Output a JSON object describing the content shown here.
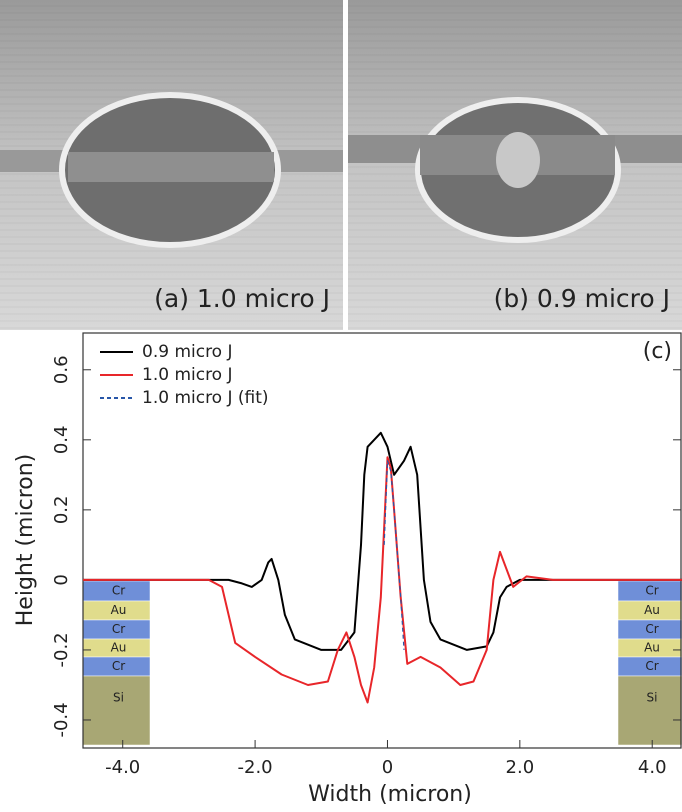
{
  "chart_data": {
    "type": "line",
    "panel_labels": [
      "(a) 1.0 micro J",
      "(b) 0.9 micro J",
      "(c)"
    ],
    "x_label": "Width (micron)",
    "y_label": "Height (micron)",
    "xlim": [
      -4.6,
      4.45
    ],
    "ylim": [
      -0.48,
      0.705
    ],
    "xticks": [
      {
        "value": -4,
        "label": "-4.0"
      },
      {
        "value": -2,
        "label": "-2.0"
      },
      0,
      {
        "value": 2,
        "label": "2.0"
      },
      {
        "value": 4,
        "label": "4.0"
      }
    ],
    "yticks": [
      -0.4,
      -0.2,
      0,
      0.2,
      0.4,
      0.6
    ],
    "legend": "upper left",
    "layer_labels": [
      "Cr",
      "Au",
      "Cr",
      "Au",
      "Cr",
      "Si"
    ],
    "series": [
      {
        "name": "0.9 micro J",
        "color": "#000000",
        "dash": false,
        "x": [
          -4.6,
          -2.4,
          -2.2,
          -2.05,
          -1.9,
          -1.8,
          -1.75,
          -1.65,
          -1.55,
          -1.4,
          -1.0,
          -0.7,
          -0.5,
          -0.4,
          -0.35,
          -0.3,
          -0.1,
          0.0,
          0.1,
          0.25,
          0.35,
          0.45,
          0.55,
          0.65,
          0.8,
          1.2,
          1.5,
          1.6,
          1.7,
          1.8,
          2.0,
          4.45
        ],
        "values": [
          0,
          0,
          -0.01,
          -0.02,
          0.0,
          0.05,
          0.06,
          0.0,
          -0.1,
          -0.17,
          -0.2,
          -0.2,
          -0.15,
          0.1,
          0.3,
          0.38,
          0.42,
          0.38,
          0.3,
          0.34,
          0.38,
          0.3,
          0.0,
          -0.12,
          -0.17,
          -0.2,
          -0.19,
          -0.15,
          -0.05,
          -0.02,
          0,
          0
        ]
      },
      {
        "name": "1.0 micro J",
        "color": "#e8262a",
        "dash": false,
        "x": [
          -4.6,
          -2.7,
          -2.5,
          -2.4,
          -2.3,
          -2.0,
          -1.6,
          -1.2,
          -0.9,
          -0.75,
          -0.62,
          -0.5,
          -0.4,
          -0.3,
          -0.2,
          -0.1,
          0.0,
          0.05,
          0.1,
          0.2,
          0.3,
          0.5,
          0.8,
          1.1,
          1.3,
          1.5,
          1.6,
          1.7,
          1.8,
          1.9,
          2.1,
          2.5,
          4.45
        ],
        "values": [
          0,
          0,
          -0.02,
          -0.1,
          -0.18,
          -0.22,
          -0.27,
          -0.3,
          -0.29,
          -0.2,
          -0.15,
          -0.22,
          -0.3,
          -0.35,
          -0.25,
          -0.05,
          0.35,
          0.32,
          0.2,
          -0.05,
          -0.24,
          -0.22,
          -0.25,
          -0.3,
          -0.29,
          -0.2,
          0.0,
          0.08,
          0.03,
          -0.02,
          0.01,
          0,
          0
        ]
      },
      {
        "name": "1.0 micro J (fit)",
        "color": "#2856a8",
        "dash": true,
        "x": [
          -0.05,
          0.0,
          0.05,
          0.1,
          0.2,
          0.25
        ],
        "values": [
          0.1,
          0.34,
          0.31,
          0.2,
          -0.05,
          -0.2
        ]
      }
    ]
  }
}
